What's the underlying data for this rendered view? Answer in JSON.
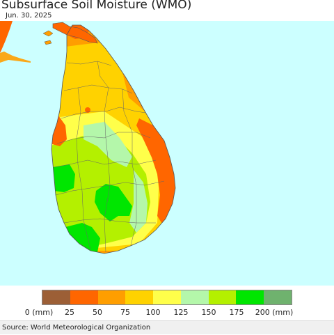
{
  "title": "Subsurface Soil Moisture (WMO)",
  "date": "Jun. 30, 2025",
  "legend": {
    "colors": [
      "#9c5f36",
      "#ff6600",
      "#ff9e00",
      "#ffd200",
      "#ffff4a",
      "#b4f7aa",
      "#b4f000",
      "#00e600",
      "#6fb26e"
    ],
    "labels": [
      "0 (mm)",
      "25",
      "50",
      "75",
      "100",
      "125",
      "150",
      "175",
      "200 (mm)"
    ]
  },
  "source": "Source: World Meteorological Organization",
  "colors": {
    "sea": "#ccffff",
    "border": "#555555"
  }
}
